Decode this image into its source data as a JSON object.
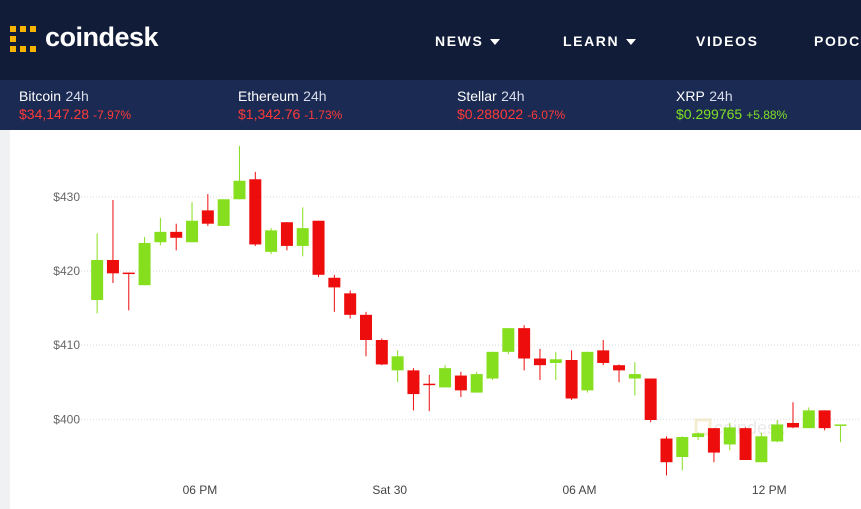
{
  "header": {
    "logo": "coindesk",
    "nav": [
      "NEWS",
      "LEARN",
      "VIDEOS",
      "PODCA"
    ]
  },
  "tickers": [
    {
      "name": "Bitcoin",
      "period": "24h",
      "price": "$34,147.28",
      "change": "-7.97%"
    },
    {
      "name": "Ethereum",
      "period": "24h",
      "price": "$1,342.76",
      "change": "-1.73%"
    },
    {
      "name": "Stellar",
      "period": "24h",
      "price": "$0.288022",
      "change": "-6.07%"
    },
    {
      "name": "XRP",
      "period": "24h",
      "price": "$0.299765",
      "change": "+5.88%"
    }
  ],
  "chart_data": {
    "type": "candlestick",
    "watermark": "coindesk",
    "categories": [
      null,
      null,
      null,
      null,
      null,
      null,
      null,
      null,
      null,
      null,
      null,
      null,
      null,
      null,
      null,
      null,
      null,
      null,
      null,
      null,
      null,
      null,
      null,
      null,
      null,
      null,
      null,
      null,
      null,
      null,
      null,
      null,
      null,
      null,
      null,
      null,
      null,
      null,
      null,
      null,
      null,
      null,
      null,
      null,
      null,
      null,
      null,
      null
    ],
    "open": [
      416.1,
      421.5,
      419.8,
      418.1,
      423.9,
      425.3,
      423.9,
      428.2,
      426.1,
      429.7,
      432.4,
      422.6,
      426.6,
      423.4,
      426.8,
      419.1,
      417.0,
      414.1,
      410.7,
      406.6,
      406.6,
      404.8,
      404.3,
      405.9,
      403.6,
      405.5,
      409.1,
      412.3,
      408.2,
      407.6,
      408.0,
      403.9,
      409.3,
      407.3,
      405.5,
      405.5,
      397.4,
      394.9,
      397.6,
      398.8,
      396.6,
      398.8,
      394.2,
      397.0,
      399.5,
      398.8,
      401.2,
      399.1
    ],
    "high": [
      425.1,
      429.6,
      419.8,
      424.6,
      427.2,
      426.4,
      429.3,
      430.4,
      429.7,
      436.9,
      433.4,
      425.8,
      426.6,
      428.6,
      426.8,
      419.5,
      417.4,
      414.5,
      410.9,
      409.3,
      406.9,
      406.0,
      407.3,
      406.4,
      406.4,
      409.1,
      412.3,
      412.7,
      409.5,
      409.1,
      409.3,
      409.1,
      410.7,
      407.4,
      407.7,
      405.5,
      397.7,
      397.7,
      398.2,
      398.8,
      399.5,
      398.9,
      398.2,
      399.9,
      402.3,
      401.6,
      401.2,
      399.3
    ],
    "low": [
      414.3,
      418.4,
      414.7,
      418.1,
      423.5,
      422.8,
      423.9,
      426.1,
      426.1,
      429.7,
      423.4,
      422.3,
      422.8,
      422.0,
      419.2,
      414.5,
      413.6,
      408.5,
      407.3,
      405.0,
      401.2,
      401.1,
      404.3,
      403.0,
      403.6,
      405.3,
      408.8,
      406.6,
      405.3,
      405.3,
      402.6,
      403.6,
      407.3,
      405.0,
      403.2,
      399.6,
      392.4,
      393.1,
      397.2,
      394.2,
      395.8,
      394.5,
      394.2,
      396.9,
      398.8,
      398.8,
      398.5,
      396.9
    ],
    "close": [
      421.5,
      419.7,
      419.6,
      423.8,
      425.3,
      424.5,
      426.8,
      426.4,
      429.7,
      432.2,
      423.6,
      425.5,
      423.4,
      425.8,
      419.5,
      417.8,
      414.1,
      410.7,
      407.4,
      408.5,
      403.4,
      404.6,
      406.9,
      403.9,
      406.1,
      409.1,
      412.3,
      408.2,
      407.3,
      408.1,
      402.8,
      409.1,
      407.6,
      406.6,
      406.1,
      399.9,
      394.2,
      397.6,
      398.1,
      395.5,
      398.9,
      394.5,
      397.7,
      399.3,
      398.9,
      401.2,
      398.8,
      399.3
    ],
    "colors": {
      "up": "#86df1e",
      "down": "#ee0d0d"
    },
    "ylim": [
      391.8,
      437.7
    ],
    "yticks": [
      {
        "value": 400,
        "label": "$400"
      },
      {
        "value": 410,
        "label": "$410"
      },
      {
        "value": 420,
        "label": "$420"
      },
      {
        "value": 430,
        "label": "$430"
      }
    ],
    "xlim": [
      -1.4,
      48.3
    ],
    "xticks": [
      {
        "value": 6.5,
        "label": "06 PM"
      },
      {
        "value": 18.5,
        "label": "Sat 30"
      },
      {
        "value": 30.5,
        "label": "06 AM"
      },
      {
        "value": 42.5,
        "label": "12 PM"
      }
    ],
    "grid": true
  }
}
